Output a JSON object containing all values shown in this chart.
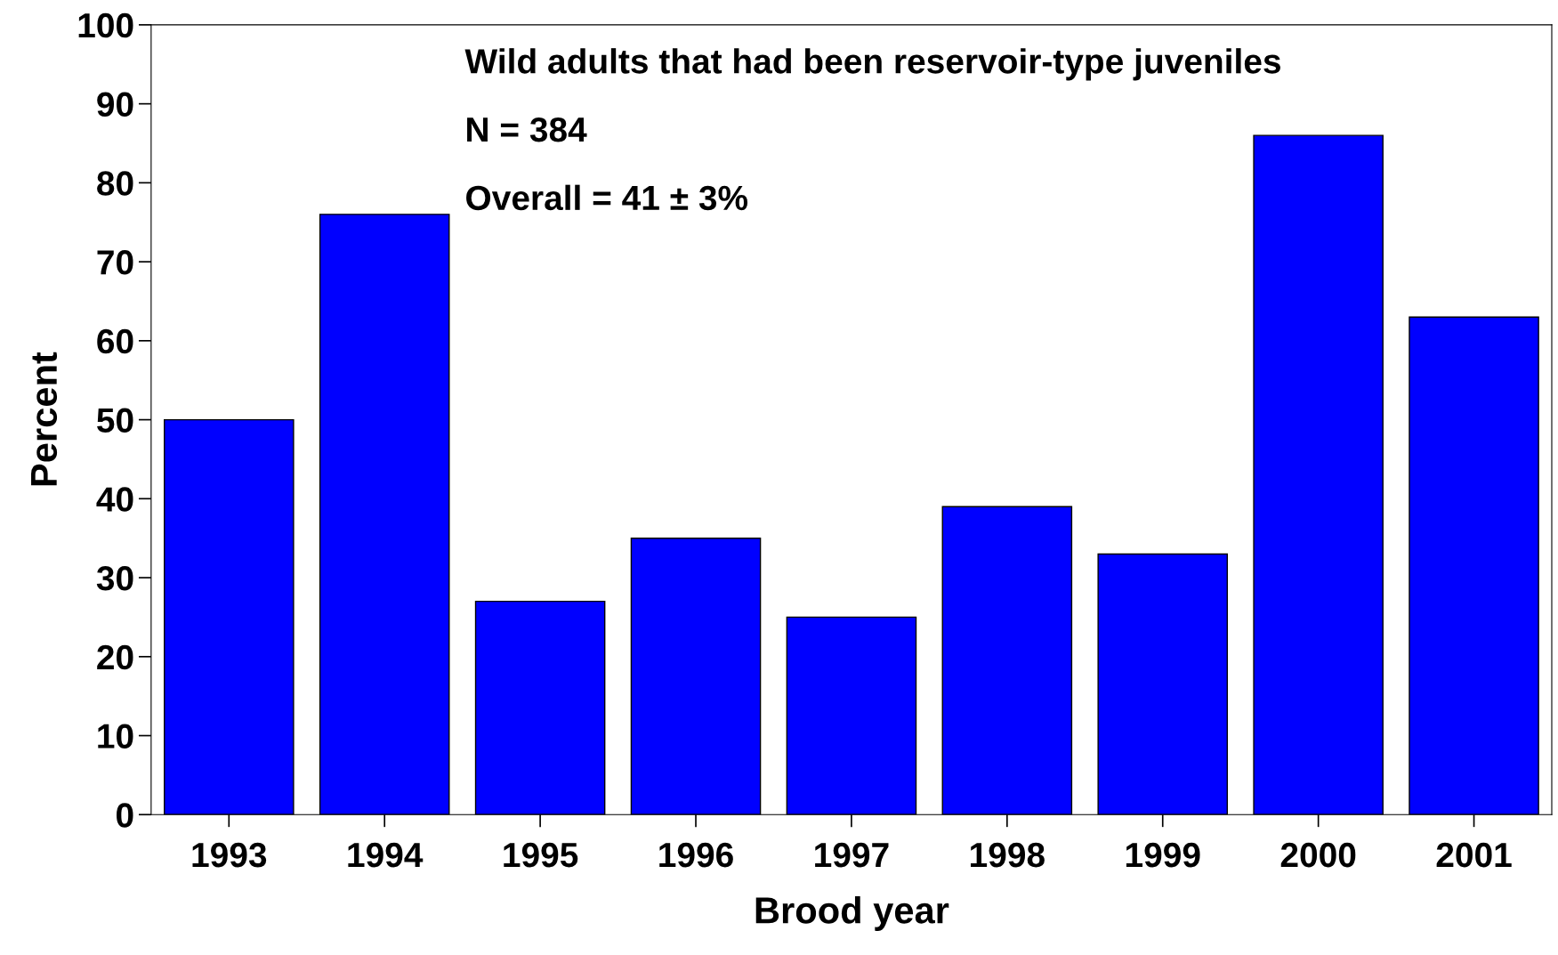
{
  "chart_data": {
    "type": "bar",
    "xlabel": "Brood year",
    "ylabel": "Percent",
    "categories": [
      "1993",
      "1994",
      "1995",
      "1996",
      "1997",
      "1998",
      "1999",
      "2000",
      "2001"
    ],
    "values": [
      50,
      76,
      27,
      35,
      25,
      39,
      33,
      86,
      63
    ],
    "color": "#0000ff",
    "ylim": [
      0,
      100
    ],
    "yticks": [
      0,
      10,
      20,
      30,
      40,
      50,
      60,
      70,
      80,
      90,
      100
    ],
    "grid": false,
    "annotations": [
      "Wild adults that had been reservoir-type juveniles",
      "N = 384",
      "Overall = 41 ± 3%"
    ]
  }
}
